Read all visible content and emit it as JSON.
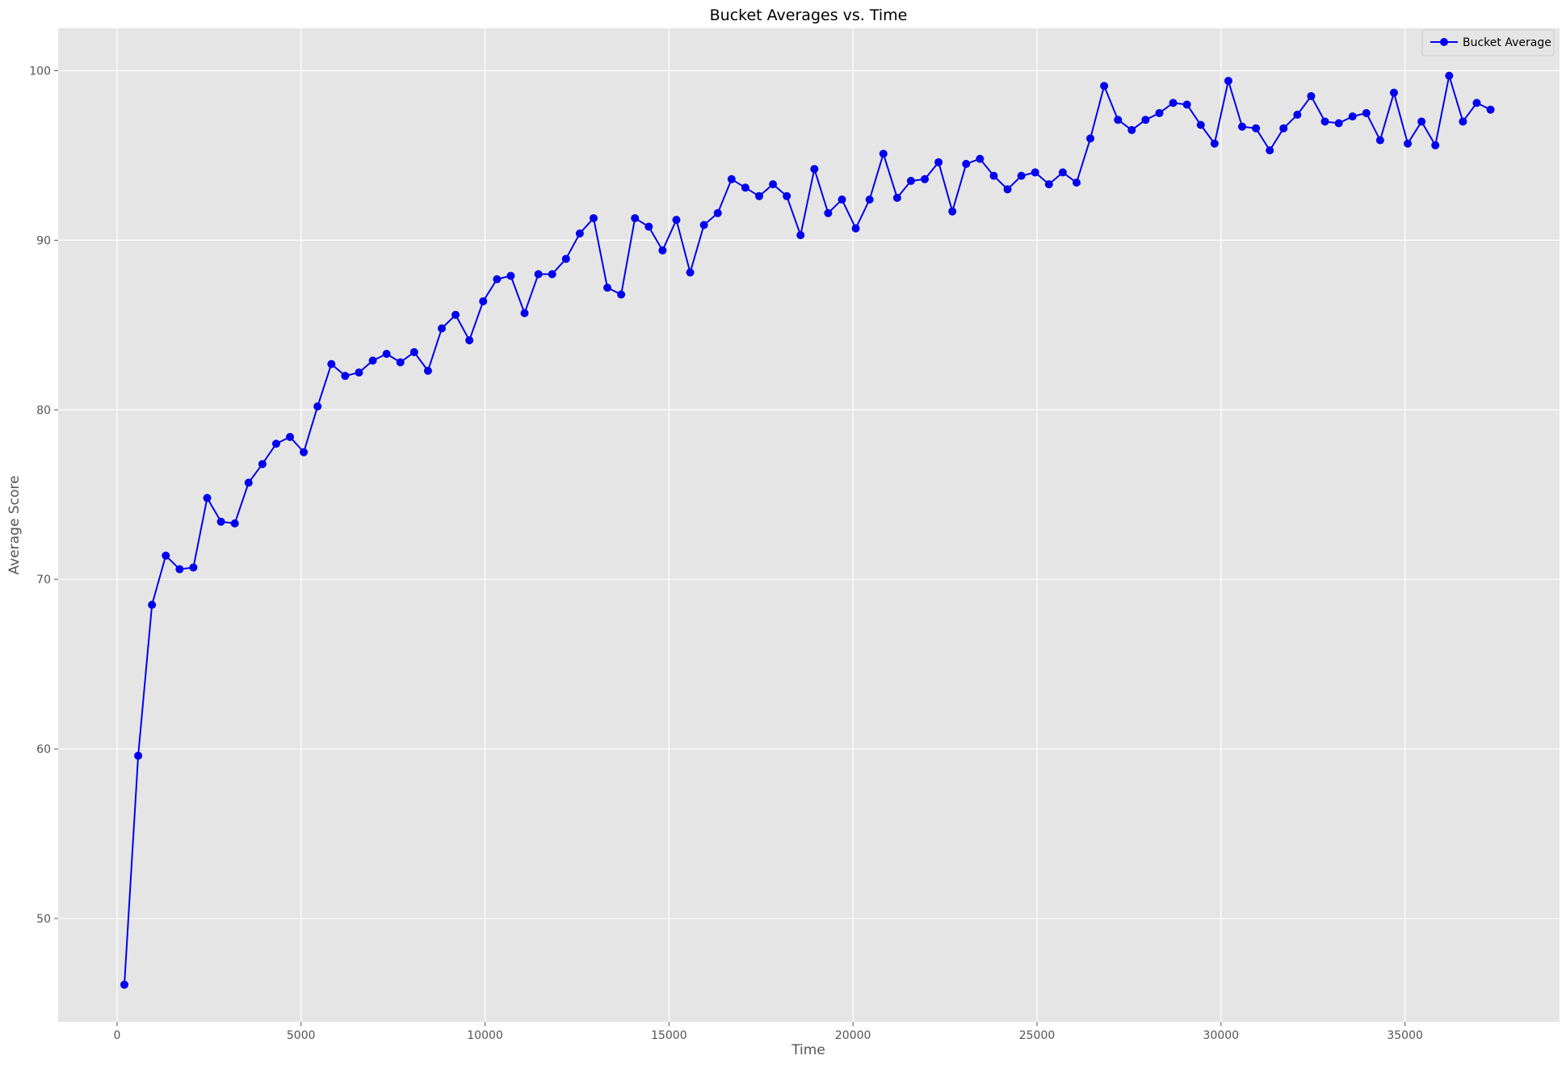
{
  "chart_data": {
    "type": "line",
    "title": "Bucket Averages vs. Time",
    "xlabel": "Time",
    "ylabel": "Average Score",
    "xlim": [
      -1600,
      39200
    ],
    "ylim": [
      43.9,
      102.5
    ],
    "xticks": [
      0,
      5000,
      10000,
      15000,
      20000,
      25000,
      30000,
      35000
    ],
    "yticks": [
      50,
      60,
      70,
      80,
      90,
      100
    ],
    "grid": true,
    "legend_position": "top-right",
    "colors": {
      "series": "#0000ee",
      "plot_background": "#e5e5e5",
      "grid": "#ffffff"
    },
    "series": [
      {
        "name": "Bucket Average",
        "marker": "circle",
        "x": [
          200,
          575,
          950,
          1325,
          1700,
          2075,
          2450,
          2825,
          3200,
          3575,
          3950,
          4325,
          4700,
          5075,
          5450,
          5825,
          6200,
          6575,
          6950,
          7325,
          7700,
          8075,
          8450,
          8825,
          9200,
          9575,
          9950,
          10325,
          10700,
          11075,
          11450,
          11825,
          12200,
          12575,
          12950,
          13325,
          13700,
          14075,
          14450,
          14825,
          15200,
          15575,
          15950,
          16325,
          16700,
          17075,
          17450,
          17825,
          18200,
          18575,
          18950,
          19325,
          19700,
          20075,
          20450,
          20825,
          21200,
          21575,
          21950,
          22325,
          22700,
          23075,
          23450,
          23825,
          24200,
          24575,
          24950,
          25325,
          25700,
          26075,
          26450,
          26825,
          27200,
          27575,
          27950,
          28325,
          28700,
          29075,
          29450,
          29825,
          30200,
          30575,
          30950,
          31325,
          31700,
          32075,
          32450,
          32825,
          33200,
          33575,
          33950,
          34325,
          34700,
          35075,
          35450,
          35825,
          36200,
          36575,
          36950,
          37325
        ],
        "values": [
          46.1,
          59.6,
          68.5,
          71.4,
          70.6,
          70.7,
          74.8,
          73.4,
          73.3,
          75.7,
          76.8,
          78.0,
          78.4,
          77.5,
          80.2,
          82.7,
          82.0,
          82.2,
          82.9,
          83.3,
          82.8,
          83.4,
          82.3,
          84.8,
          85.6,
          84.1,
          86.4,
          87.7,
          87.9,
          85.7,
          88.0,
          88.0,
          88.9,
          90.4,
          91.3,
          87.2,
          86.8,
          91.3,
          90.8,
          89.4,
          91.2,
          88.1,
          90.9,
          91.6,
          93.6,
          93.1,
          92.6,
          93.3,
          92.6,
          90.3,
          94.2,
          91.6,
          92.4,
          90.7,
          92.4,
          95.1,
          92.5,
          93.5,
          93.6,
          94.6,
          91.7,
          94.5,
          94.8,
          93.8,
          93.0,
          93.8,
          94.0,
          93.3,
          94.0,
          93.4,
          96.0,
          99.1,
          97.1,
          96.5,
          97.1,
          97.5,
          98.1,
          98.0,
          96.8,
          95.7,
          99.4,
          96.7,
          96.6,
          95.3,
          96.6,
          97.4,
          98.5,
          97.0,
          96.9,
          97.3,
          97.5,
          95.9,
          98.7,
          95.7,
          97.0,
          95.6,
          99.7,
          97.0,
          98.1,
          97.7
        ]
      }
    ]
  }
}
